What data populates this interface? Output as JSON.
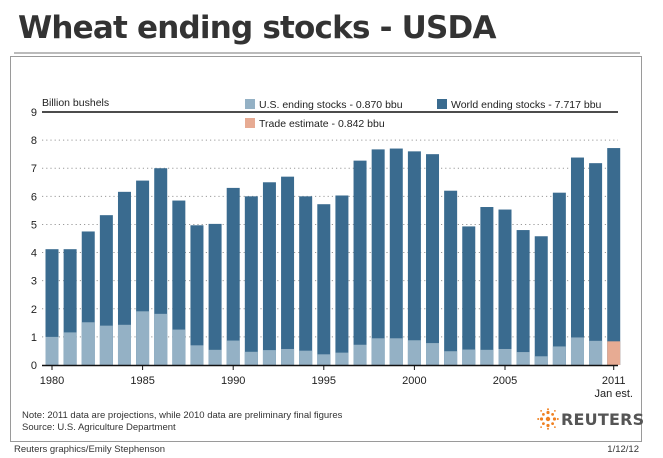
{
  "header": {
    "title": "Wheat ending stocks - USDA"
  },
  "notes": {
    "line1": "Note: 2011 data are projections, while 2010 data are preliminary final figures",
    "line2": "Source: U.S. Agriculture Department"
  },
  "footer": {
    "credit": "Reuters graphics/Emily Stephenson",
    "date": "1/12/12"
  },
  "brand": {
    "name": "REUTERS",
    "color": "#f08020",
    "icon": "reuters-dot-logo-icon"
  },
  "colors": {
    "world": "#3a6b8f",
    "us": "#94b1c5",
    "trade": "#e7ab93"
  },
  "chart_data": {
    "type": "bar",
    "ylabel": "Billion bushels",
    "ylim": [
      0,
      9
    ],
    "yticks": [
      0,
      1,
      2,
      3,
      4,
      5,
      6,
      7,
      8,
      9
    ],
    "grid": "dotted horizontal",
    "xtick_labels": [
      {
        "year": 1980,
        "label": "1980"
      },
      {
        "year": 1985,
        "label": "1985"
      },
      {
        "year": 1990,
        "label": "1990"
      },
      {
        "year": 1995,
        "label": "1995"
      },
      {
        "year": 2000,
        "label": "2000"
      },
      {
        "year": 2005,
        "label": "2005"
      },
      {
        "year": 2011,
        "label": "2011"
      }
    ],
    "sub_label": {
      "year": 2011,
      "label": "Jan est."
    },
    "legend": [
      {
        "key": "us",
        "label": "U.S. ending stocks - 0.870 bbu"
      },
      {
        "key": "world",
        "label": "World ending stocks - 7.717 bbu"
      },
      {
        "key": "trade",
        "label": "Trade estimate - 0.842 bbu"
      }
    ],
    "legend_position": "top",
    "years": [
      1980,
      1981,
      1982,
      1983,
      1984,
      1985,
      1986,
      1987,
      1988,
      1989,
      1990,
      1991,
      1992,
      1993,
      1994,
      1995,
      1996,
      1997,
      1998,
      1999,
      2000,
      2001,
      2002,
      2003,
      2004,
      2005,
      2006,
      2007,
      2008,
      2009,
      2010,
      2011
    ],
    "series": [
      {
        "key": "world",
        "name": "World ending stocks",
        "values": [
          4.12,
          4.12,
          4.75,
          5.33,
          6.16,
          6.56,
          7.0,
          5.85,
          4.97,
          5.02,
          6.3,
          6.0,
          6.5,
          6.7,
          6.0,
          5.72,
          6.03,
          7.27,
          7.67,
          7.7,
          7.6,
          7.5,
          6.2,
          4.93,
          5.62,
          5.53,
          4.8,
          4.58,
          6.13,
          7.38,
          7.18,
          7.717
        ]
      },
      {
        "key": "us",
        "name": "U.S. ending stocks",
        "values": [
          1.0,
          1.16,
          1.52,
          1.4,
          1.43,
          1.91,
          1.82,
          1.26,
          0.7,
          0.54,
          0.87,
          0.47,
          0.53,
          0.57,
          0.51,
          0.38,
          0.44,
          0.72,
          0.95,
          0.95,
          0.88,
          0.78,
          0.49,
          0.55,
          0.54,
          0.57,
          0.46,
          0.31,
          0.66,
          0.98,
          0.86,
          0.87
        ]
      },
      {
        "key": "trade",
        "name": "Trade estimate",
        "year": 2011,
        "value": 0.842
      }
    ]
  }
}
